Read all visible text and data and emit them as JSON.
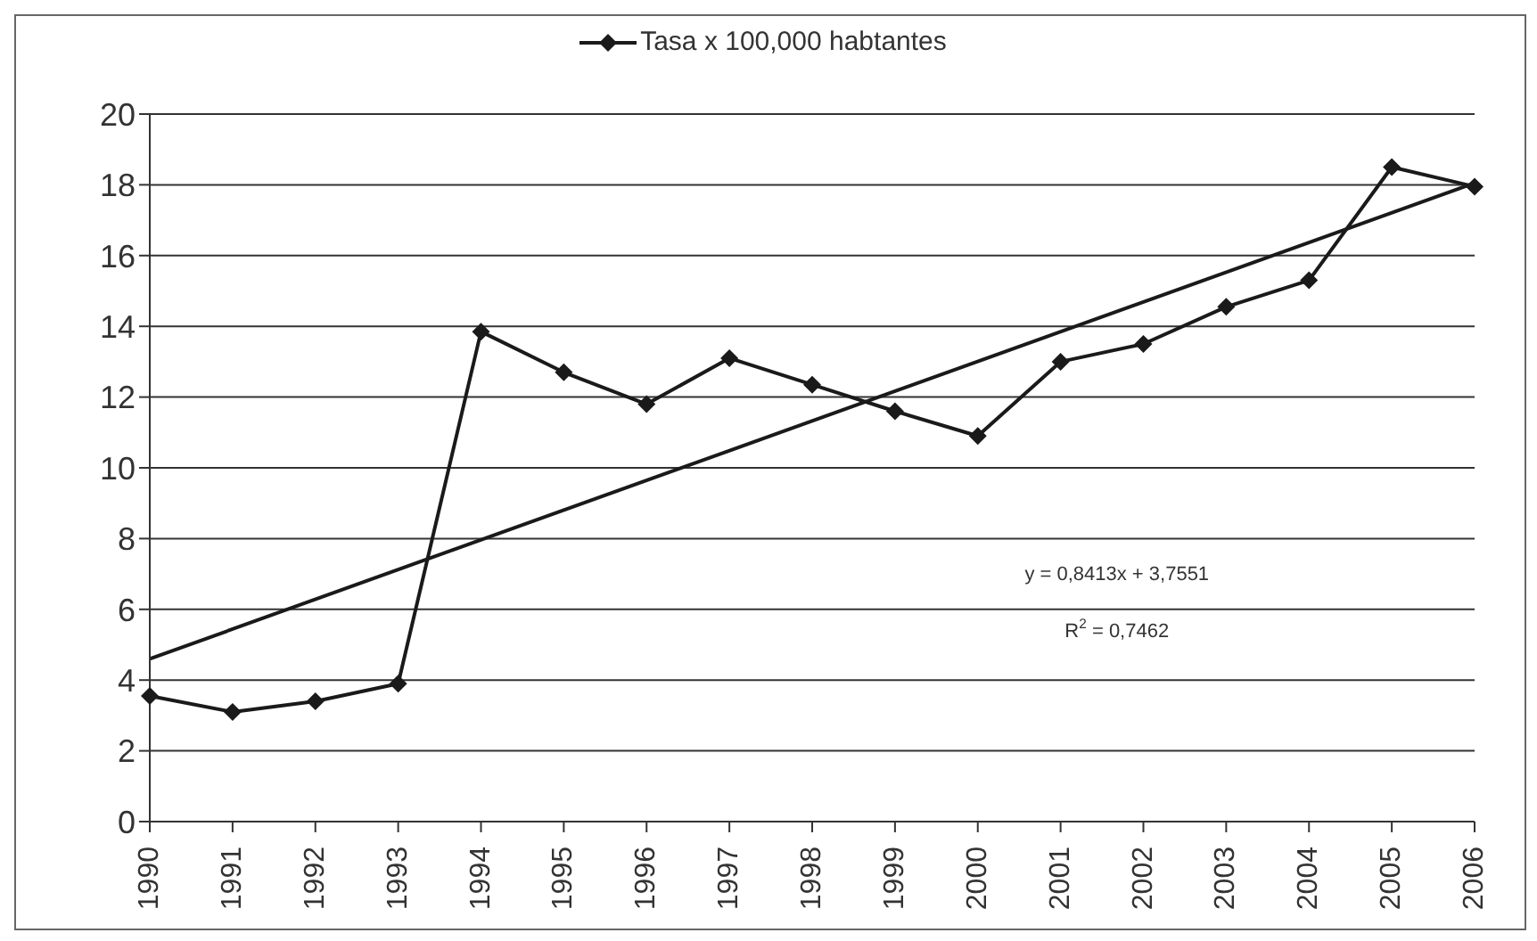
{
  "chart_data": {
    "type": "line",
    "categories": [
      "1990",
      "1991",
      "1992",
      "1993",
      "1994",
      "1995",
      "1996",
      "1997",
      "1998",
      "1999",
      "2000",
      "2001",
      "2002",
      "2003",
      "2004",
      "2005",
      "2006"
    ],
    "series": [
      {
        "name": "Tasa x 100,000 habtantes",
        "color": "#1a1a1a",
        "marker": "diamond",
        "values": [
          3.55,
          3.1,
          3.4,
          3.9,
          13.85,
          12.7,
          11.8,
          13.1,
          12.35,
          11.6,
          10.9,
          13.0,
          13.5,
          14.55,
          15.3,
          18.5,
          17.95
        ]
      },
      {
        "type": "line",
        "color": "#1a1a1a",
        "marker": "none",
        "values": [
          4.6,
          null,
          null,
          null,
          null,
          null,
          null,
          null,
          null,
          null,
          null,
          null,
          null,
          null,
          null,
          null,
          18.05
        ]
      }
    ],
    "ylim": [
      0,
      20
    ],
    "yticks": [
      0,
      2,
      4,
      6,
      8,
      10,
      12,
      14,
      16,
      18,
      20
    ],
    "grid": "y",
    "legend": "top",
    "annotations": [
      "y = 0,8413x + 3,7551",
      "R$^{2}$ = 0,7462"
    ]
  }
}
